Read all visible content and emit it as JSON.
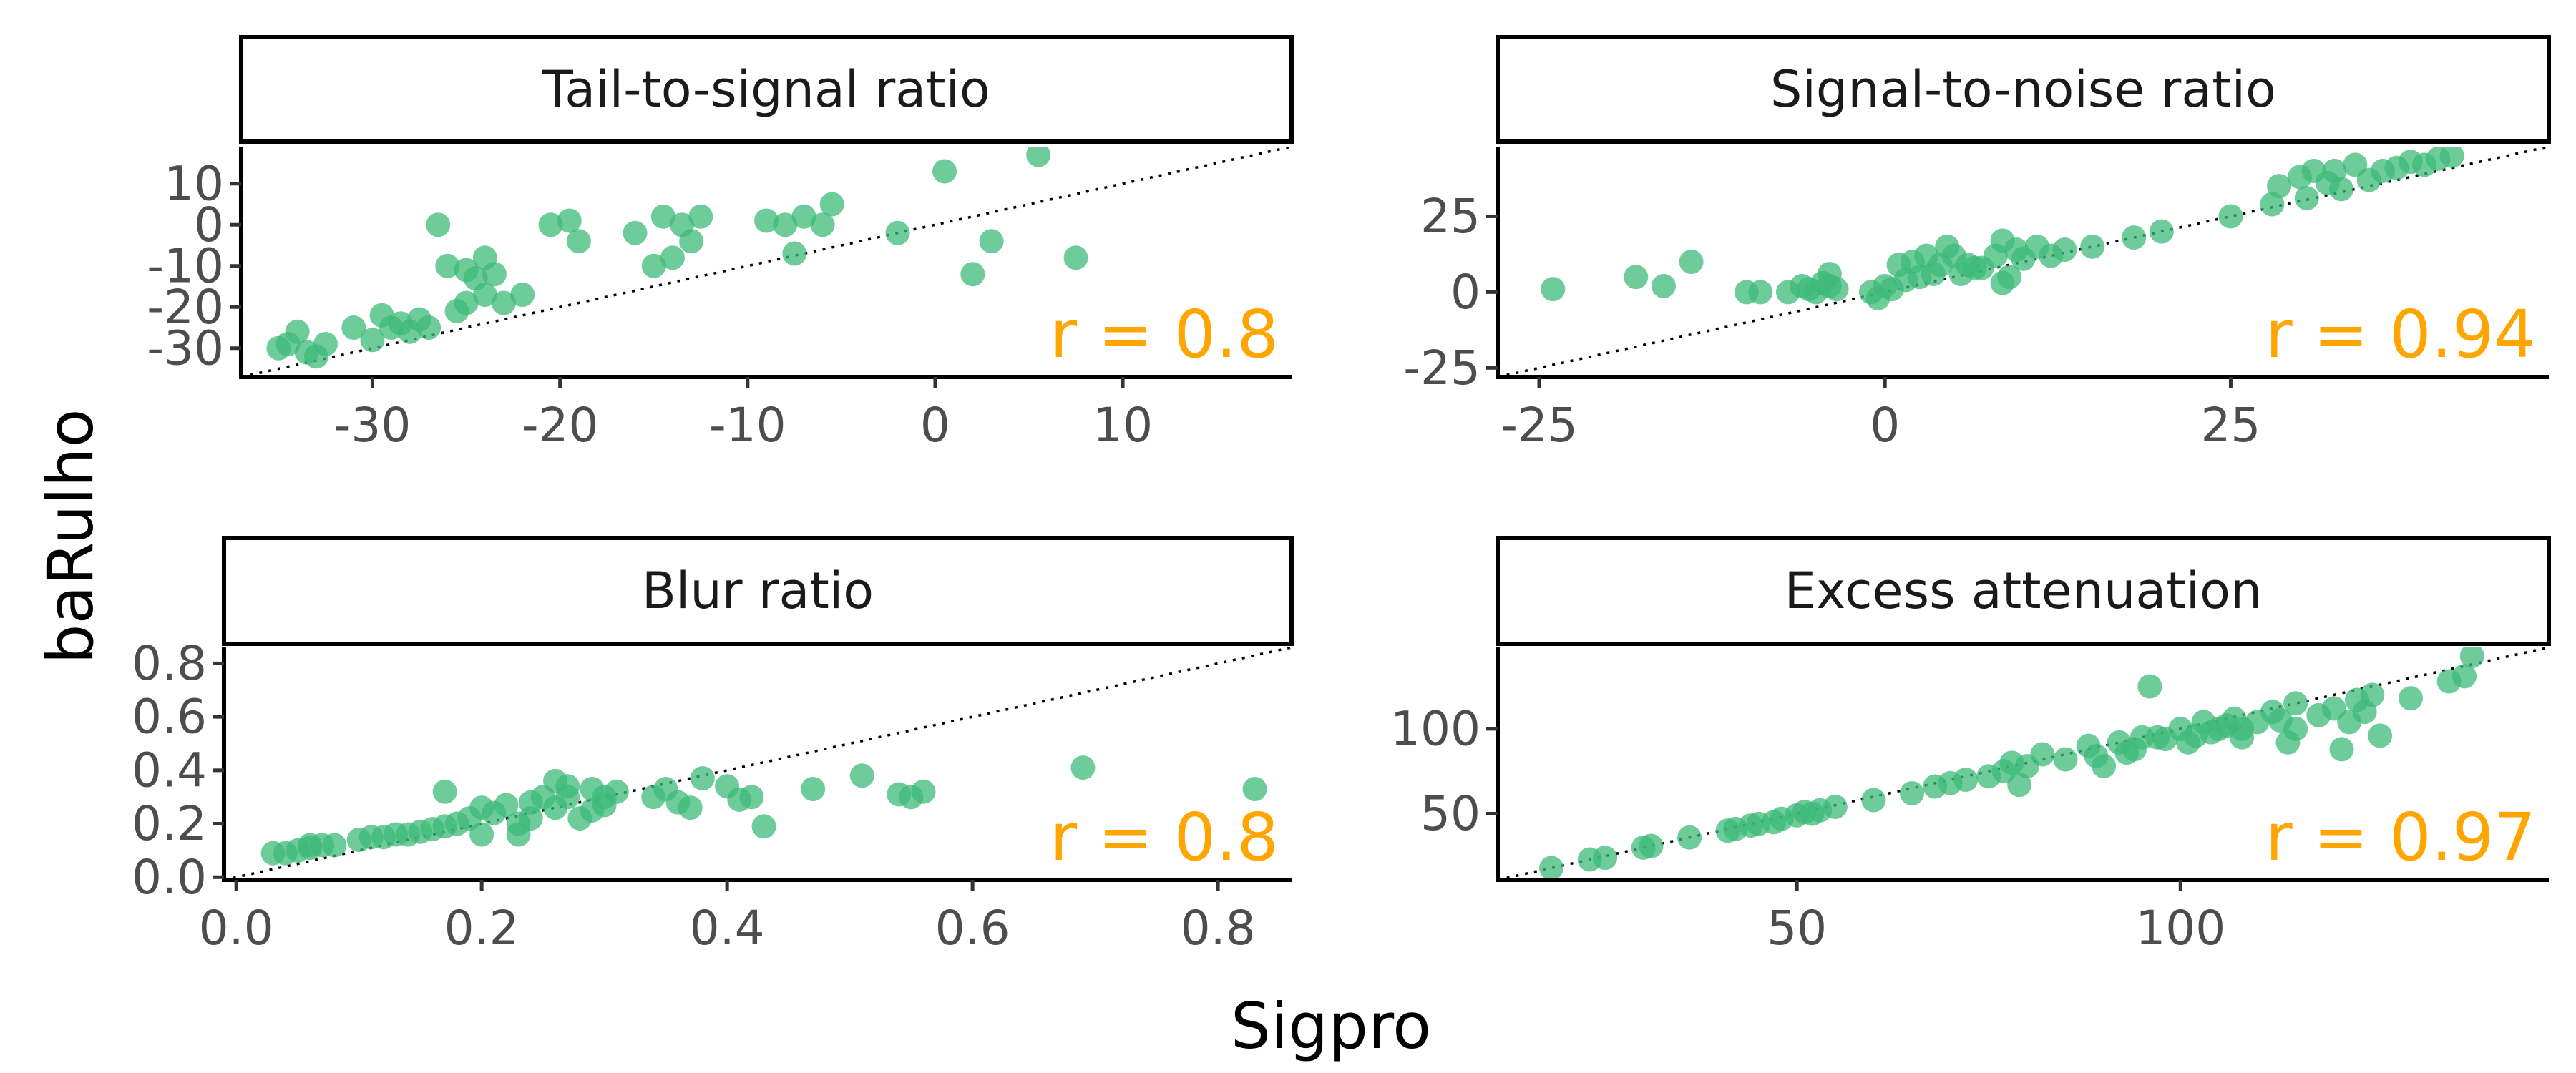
{
  "figure": {
    "xlabel": "Sigpro",
    "ylabel": "baRulho",
    "point_color": "#3dba78",
    "annotation_color": "#ffa500"
  },
  "chart_data": [
    {
      "type": "scatter",
      "title": "Tail-to-signal ratio",
      "annotation": "r = 0.8",
      "xlim": [
        -37,
        19
      ],
      "ylim": [
        -37,
        19
      ],
      "xticks": [
        -30,
        -20,
        -10,
        0,
        10
      ],
      "yticks": [
        -30,
        -20,
        -10,
        0,
        10
      ],
      "reference_line": "y = x",
      "points": [
        [
          -35,
          -30
        ],
        [
          -34.5,
          -29
        ],
        [
          -34,
          -26
        ],
        [
          -33.5,
          -31
        ],
        [
          -33,
          -32
        ],
        [
          -32.5,
          -29
        ],
        [
          -31,
          -25
        ],
        [
          -30,
          -28
        ],
        [
          -29.5,
          -22
        ],
        [
          -29,
          -25
        ],
        [
          -28.5,
          -24
        ],
        [
          -28,
          -26
        ],
        [
          -27.5,
          -23
        ],
        [
          -27,
          -25
        ],
        [
          -26.5,
          0
        ],
        [
          -26,
          -10
        ],
        [
          -25.5,
          -21
        ],
        [
          -25,
          -19
        ],
        [
          -25,
          -11
        ],
        [
          -24.5,
          -13
        ],
        [
          -24,
          -17
        ],
        [
          -24,
          -8
        ],
        [
          -23.5,
          -12
        ],
        [
          -23,
          -19
        ],
        [
          -22,
          -17
        ],
        [
          -20.5,
          0
        ],
        [
          -19.5,
          1
        ],
        [
          -19,
          -4
        ],
        [
          -16,
          -2
        ],
        [
          -15,
          -10
        ],
        [
          -14.5,
          2
        ],
        [
          -14,
          -8
        ],
        [
          -13.5,
          0
        ],
        [
          -13,
          -4
        ],
        [
          -12.5,
          2
        ],
        [
          -9,
          1
        ],
        [
          -8,
          0
        ],
        [
          -7.5,
          -7
        ],
        [
          -7,
          2
        ],
        [
          -6,
          0
        ],
        [
          -5.5,
          5
        ],
        [
          -2,
          -2
        ],
        [
          0.5,
          13
        ],
        [
          2,
          -12
        ],
        [
          3,
          -4
        ],
        [
          5.5,
          17
        ],
        [
          7.5,
          -8
        ]
      ]
    },
    {
      "type": "scatter",
      "title": "Signal-to-noise ratio",
      "annotation": "r = 0.94",
      "xlim": [
        -28,
        48
      ],
      "ylim": [
        -28,
        48
      ],
      "xticks": [
        -25,
        0,
        25
      ],
      "yticks": [
        -25,
        0,
        25
      ],
      "reference_line": "y = x",
      "points": [
        [
          -24,
          1
        ],
        [
          -18,
          5
        ],
        [
          -16,
          2
        ],
        [
          -14,
          10
        ],
        [
          -10,
          0
        ],
        [
          -9,
          0
        ],
        [
          -7,
          0
        ],
        [
          -6,
          2
        ],
        [
          -5.5,
          1
        ],
        [
          -5,
          0
        ],
        [
          -4.5,
          3
        ],
        [
          -4,
          2
        ],
        [
          -4,
          6
        ],
        [
          -3.5,
          1
        ],
        [
          -1,
          0
        ],
        [
          -0.5,
          -2
        ],
        [
          0,
          2
        ],
        [
          0.5,
          1
        ],
        [
          1,
          9
        ],
        [
          1.5,
          4
        ],
        [
          2,
          10
        ],
        [
          2.5,
          5
        ],
        [
          3,
          12
        ],
        [
          3.5,
          6
        ],
        [
          4,
          9
        ],
        [
          4.5,
          15
        ],
        [
          5,
          12
        ],
        [
          5.5,
          6
        ],
        [
          6,
          9
        ],
        [
          6.5,
          8
        ],
        [
          7,
          8
        ],
        [
          8,
          12
        ],
        [
          8.5,
          17
        ],
        [
          8.5,
          3
        ],
        [
          9,
          5
        ],
        [
          9.5,
          14
        ],
        [
          10,
          11
        ],
        [
          11,
          15
        ],
        [
          12,
          12
        ],
        [
          13,
          14
        ],
        [
          15,
          15
        ],
        [
          18,
          18
        ],
        [
          20,
          20
        ],
        [
          25,
          25
        ],
        [
          28,
          29
        ],
        [
          28.5,
          35
        ],
        [
          30,
          38
        ],
        [
          30.5,
          31
        ],
        [
          31,
          40
        ],
        [
          32,
          36
        ],
        [
          32.5,
          40
        ],
        [
          33,
          34
        ],
        [
          34,
          42
        ],
        [
          35,
          37
        ],
        [
          36,
          40
        ],
        [
          37,
          41
        ],
        [
          38,
          43
        ],
        [
          39,
          42
        ],
        [
          40,
          44
        ],
        [
          41,
          45
        ]
      ]
    },
    {
      "type": "scatter",
      "title": "Blur ratio",
      "annotation": "r = 0.8",
      "xlim": [
        -0.01,
        0.86
      ],
      "ylim": [
        -0.01,
        0.86
      ],
      "xticks": [
        0.0,
        0.2,
        0.4,
        0.6,
        0.8
      ],
      "yticks": [
        0.0,
        0.2,
        0.4,
        0.6,
        0.8
      ],
      "reference_line": "y = x",
      "points": [
        [
          0.03,
          0.09
        ],
        [
          0.04,
          0.09
        ],
        [
          0.05,
          0.1
        ],
        [
          0.06,
          0.11
        ],
        [
          0.06,
          0.12
        ],
        [
          0.07,
          0.12
        ],
        [
          0.08,
          0.12
        ],
        [
          0.1,
          0.14
        ],
        [
          0.11,
          0.15
        ],
        [
          0.12,
          0.15
        ],
        [
          0.13,
          0.16
        ],
        [
          0.14,
          0.16
        ],
        [
          0.15,
          0.17
        ],
        [
          0.16,
          0.18
        ],
        [
          0.17,
          0.19
        ],
        [
          0.17,
          0.32
        ],
        [
          0.18,
          0.2
        ],
        [
          0.19,
          0.22
        ],
        [
          0.2,
          0.16
        ],
        [
          0.2,
          0.26
        ],
        [
          0.21,
          0.24
        ],
        [
          0.22,
          0.27
        ],
        [
          0.23,
          0.16
        ],
        [
          0.23,
          0.2
        ],
        [
          0.24,
          0.28
        ],
        [
          0.24,
          0.22
        ],
        [
          0.25,
          0.3
        ],
        [
          0.26,
          0.36
        ],
        [
          0.26,
          0.26
        ],
        [
          0.27,
          0.34
        ],
        [
          0.27,
          0.3
        ],
        [
          0.28,
          0.22
        ],
        [
          0.29,
          0.25
        ],
        [
          0.29,
          0.33
        ],
        [
          0.3,
          0.27
        ],
        [
          0.3,
          0.3
        ],
        [
          0.31,
          0.32
        ],
        [
          0.34,
          0.3
        ],
        [
          0.35,
          0.33
        ],
        [
          0.36,
          0.28
        ],
        [
          0.37,
          0.26
        ],
        [
          0.38,
          0.37
        ],
        [
          0.4,
          0.34
        ],
        [
          0.41,
          0.29
        ],
        [
          0.42,
          0.3
        ],
        [
          0.43,
          0.19
        ],
        [
          0.47,
          0.33
        ],
        [
          0.51,
          0.38
        ],
        [
          0.54,
          0.31
        ],
        [
          0.55,
          0.3
        ],
        [
          0.56,
          0.32
        ],
        [
          0.69,
          0.41
        ],
        [
          0.83,
          0.33
        ]
      ]
    },
    {
      "type": "scatter",
      "title": "Excess attenuation",
      "annotation": "r = 0.97",
      "xlim": [
        11,
        148
      ],
      "ylim": [
        11,
        148
      ],
      "xticks": [
        50,
        100
      ],
      "yticks": [
        50,
        100
      ],
      "reference_line": "y = x",
      "points": [
        [
          18,
          18
        ],
        [
          23,
          23
        ],
        [
          25,
          24
        ],
        [
          30,
          30
        ],
        [
          31,
          31
        ],
        [
          36,
          36
        ],
        [
          41,
          40
        ],
        [
          42,
          41
        ],
        [
          44,
          43
        ],
        [
          45,
          44
        ],
        [
          47,
          45
        ],
        [
          48,
          47
        ],
        [
          50,
          49
        ],
        [
          51,
          51
        ],
        [
          52,
          50
        ],
        [
          53,
          52
        ],
        [
          55,
          54
        ],
        [
          60,
          58
        ],
        [
          65,
          62
        ],
        [
          68,
          66
        ],
        [
          70,
          68
        ],
        [
          72,
          70
        ],
        [
          75,
          72
        ],
        [
          77,
          75
        ],
        [
          78,
          80
        ],
        [
          79,
          67
        ],
        [
          80,
          78
        ],
        [
          82,
          85
        ],
        [
          85,
          82
        ],
        [
          88,
          90
        ],
        [
          89,
          84
        ],
        [
          90,
          78
        ],
        [
          92,
          92
        ],
        [
          93,
          86
        ],
        [
          94,
          88
        ],
        [
          95,
          95
        ],
        [
          96,
          125
        ],
        [
          97,
          95
        ],
        [
          98,
          94
        ],
        [
          100,
          100
        ],
        [
          101,
          92
        ],
        [
          102,
          96
        ],
        [
          103,
          104
        ],
        [
          104,
          98
        ],
        [
          105,
          100
        ],
        [
          106,
          102
        ],
        [
          107,
          106
        ],
        [
          108,
          100
        ],
        [
          108,
          95
        ],
        [
          110,
          104
        ],
        [
          112,
          110
        ],
        [
          113,
          105
        ],
        [
          114,
          92
        ],
        [
          115,
          100
        ],
        [
          115,
          115
        ],
        [
          118,
          108
        ],
        [
          120,
          112
        ],
        [
          121,
          88
        ],
        [
          122,
          104
        ],
        [
          123,
          117
        ],
        [
          124,
          110
        ],
        [
          125,
          120
        ],
        [
          126,
          96
        ],
        [
          130,
          118
        ],
        [
          135,
          128
        ],
        [
          137,
          131
        ],
        [
          138,
          143
        ]
      ]
    }
  ]
}
